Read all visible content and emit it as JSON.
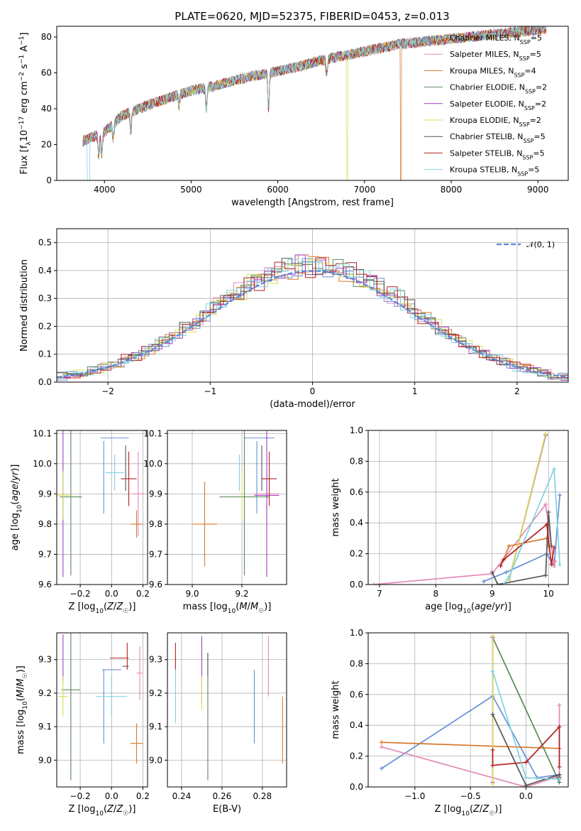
{
  "figure": {
    "title": "PLATE=0620, MJD=52375, FIBERID=0453, z=0.013",
    "series": [
      {
        "name": "Chabrier MILES, N_{SSP}=5",
        "legend_main": "Chabrier MILES, N",
        "legend_sub": "SSP",
        "legend_tail": "=5",
        "color": "#6b8fd6"
      },
      {
        "name": "Salpeter MILES, N_{SSP}=5",
        "legend_main": "Salpeter MILES, N",
        "legend_sub": "SSP",
        "legend_tail": "=5",
        "color": "#e589b6"
      },
      {
        "name": "Kroupa MILES, N_{SSP}=4",
        "legend_main": "Kroupa MILES, N",
        "legend_sub": "SSP",
        "legend_tail": "=4",
        "color": "#d9782a"
      },
      {
        "name": "Chabrier ELODIE, N_{SSP}=2",
        "legend_main": "Chabrier ELODIE, N",
        "legend_sub": "SSP",
        "legend_tail": "=2",
        "color": "#5b8a5b"
      },
      {
        "name": "Salpeter ELODIE, N_{SSP}=2",
        "legend_main": "Salpeter ELODIE, N",
        "legend_sub": "SSP",
        "legend_tail": "=2",
        "color": "#a23ec4"
      },
      {
        "name": "Kroupa ELODIE, N_{SSP}=2",
        "legend_main": "Kroupa ELODIE, N",
        "legend_sub": "SSP",
        "legend_tail": "=2",
        "color": "#d9e05a"
      },
      {
        "name": "Chabrier STELIB, N_{SSP}=5",
        "legend_main": "Chabrier STELIB, N",
        "legend_sub": "SSP",
        "legend_tail": "=5",
        "color": "#555555"
      },
      {
        "name": "Salpeter STELIB, N_{SSP}=5",
        "legend_main": "Salpeter STELIB, N",
        "legend_sub": "SSP",
        "legend_tail": "=5",
        "color": "#b22222"
      },
      {
        "name": "Kroupa STELIB, N_{SSP}=5",
        "legend_main": "Kroupa STELIB, N",
        "legend_sub": "SSP",
        "legend_tail": "=5",
        "color": "#7fd3df"
      }
    ]
  },
  "chart_data": [
    {
      "id": "spectrum",
      "type": "line",
      "xlabel": "wavelength [Angstrom, rest frame]",
      "ylabel": "Flux [f_λ 10^-17 erg cm^-2 s^-1 A^-1]",
      "xlim": [
        3450,
        9350
      ],
      "ylim": [
        0,
        86
      ],
      "xticks": [
        4000,
        5000,
        6000,
        7000,
        8000,
        9000
      ],
      "yticks": [
        0,
        20,
        40,
        60,
        80
      ],
      "grid": false,
      "legend": "top-right",
      "continuum": [
        [
          3750,
          22
        ],
        [
          3900,
          25
        ],
        [
          4000,
          27
        ],
        [
          4200,
          36
        ],
        [
          4500,
          42
        ],
        [
          4800,
          47
        ],
        [
          5000,
          50
        ],
        [
          5300,
          53
        ],
        [
          5600,
          57
        ],
        [
          5900,
          60
        ],
        [
          6200,
          63
        ],
        [
          6500,
          67
        ],
        [
          6800,
          70
        ],
        [
          7100,
          73
        ],
        [
          7400,
          76
        ],
        [
          7800,
          78
        ],
        [
          8200,
          80
        ],
        [
          8600,
          82
        ],
        [
          9000,
          84
        ],
        [
          9100,
          85
        ]
      ],
      "absorption_lines": [
        [
          3934,
          12
        ],
        [
          3969,
          12
        ],
        [
          4101,
          8
        ],
        [
          4304,
          10
        ],
        [
          4861,
          6
        ],
        [
          5175,
          12
        ],
        [
          5893,
          20
        ],
        [
          6563,
          8
        ]
      ]
    },
    {
      "id": "residuals",
      "type": "histogram",
      "xlabel": "(data-model)/error",
      "ylabel": "Normed distribution",
      "xlim": [
        -2.5,
        2.5
      ],
      "ylim": [
        0,
        0.55
      ],
      "xticks": [
        -2,
        -1,
        0,
        1,
        2
      ],
      "yticks": [
        0.0,
        0.1,
        0.2,
        0.3,
        0.4,
        0.5
      ],
      "grid": true,
      "legend": "top-right",
      "reference_label": "N(0, 1)",
      "reference_color": "#5b87d6",
      "bin_width": 0.1
    },
    {
      "id": "age-vs-Z",
      "type": "scatter-errorbars",
      "xlabel": "Z [log10(Z/Z☉)]",
      "ylabel": "age [log10(age/yr)]",
      "xlim": [
        -0.35,
        0.23
      ],
      "ylim": [
        9.6,
        10.11
      ],
      "xticks": [
        -0.2,
        0.0,
        0.2
      ],
      "xtick_labels": [
        "−0.2",
        "0.0",
        "0.2"
      ],
      "yticks": [
        9.6,
        9.7,
        9.8,
        9.9,
        10.0,
        10.1
      ],
      "grid": true,
      "points": [
        {
          "x": 0.02,
          "y": 10.085,
          "xerr": 0.09,
          "yerr": 0.0,
          "color": "#6b8fd6"
        },
        {
          "x": -0.05,
          "y": 9.955,
          "xerr": 0.0,
          "yerr": 0.12,
          "color": "#6b8fd6"
        },
        {
          "x": 0.17,
          "y": 9.9,
          "xerr": 0.04,
          "yerr": 0.14,
          "color": "#e589b6"
        },
        {
          "x": 0.16,
          "y": 9.8,
          "xerr": 0.04,
          "yerr": 0.045,
          "color": "#d9782a"
        },
        {
          "x": -0.26,
          "y": 9.89,
          "xerr": 0.07,
          "yerr": 0.26,
          "color": "#5b8a5b"
        },
        {
          "x": -0.31,
          "y": 9.895,
          "xerr": 0.0,
          "yerr": 0.27,
          "color": "#a23ec4"
        },
        {
          "x": -0.31,
          "y": 9.895,
          "xerr": 0.05,
          "yerr": 0.08,
          "color": "#d9e05a"
        },
        {
          "x": 0.09,
          "y": 9.985,
          "xerr": 0.0,
          "yerr": 0.075,
          "color": "#555555"
        },
        {
          "x": 0.11,
          "y": 9.95,
          "xerr": 0.05,
          "yerr": 0.09,
          "color": "#b22222"
        },
        {
          "x": 0.02,
          "y": 9.97,
          "xerr": 0.06,
          "yerr": 0.06,
          "color": "#7fd3df"
        }
      ]
    },
    {
      "id": "age-vs-mass",
      "type": "scatter-errorbars",
      "xlabel": "mass [log10(M/M☉)]",
      "ylabel": "",
      "xlim": [
        8.9,
        9.38
      ],
      "ylim": [
        9.6,
        10.11
      ],
      "xticks": [
        9.0,
        9.2
      ],
      "xtick_labels": [
        "9.0",
        "9.2"
      ],
      "yticks": [
        9.6,
        9.7,
        9.8,
        9.9,
        10.0,
        10.1
      ],
      "grid": true,
      "points": [
        {
          "x": 9.27,
          "y": 10.085,
          "xerr": 0.06,
          "yerr": 0.0,
          "color": "#6b8fd6"
        },
        {
          "x": 9.26,
          "y": 9.955,
          "xerr": 0.0,
          "yerr": 0.12,
          "color": "#6b8fd6"
        },
        {
          "x": 9.3,
          "y": 9.9,
          "xerr": 0.05,
          "yerr": 0.07,
          "color": "#e589b6"
        },
        {
          "x": 9.05,
          "y": 9.8,
          "xerr": 0.05,
          "yerr": 0.14,
          "color": "#d9782a"
        },
        {
          "x": 9.21,
          "y": 9.89,
          "xerr": 0.1,
          "yerr": 0.26,
          "color": "#5b8a5b"
        },
        {
          "x": 9.3,
          "y": 9.895,
          "xerr": 0.05,
          "yerr": 0.27,
          "color": "#a23ec4"
        },
        {
          "x": 9.2,
          "y": 9.895,
          "xerr": 0.0,
          "yerr": 0.08,
          "color": "#d9e05a"
        },
        {
          "x": 9.28,
          "y": 9.985,
          "xerr": 0.0,
          "yerr": 0.075,
          "color": "#555555"
        },
        {
          "x": 9.31,
          "y": 9.95,
          "xerr": 0.03,
          "yerr": 0.09,
          "color": "#b22222"
        },
        {
          "x": 9.19,
          "y": 9.97,
          "xerr": 0.0,
          "yerr": 0.06,
          "color": "#7fd3df"
        }
      ]
    },
    {
      "id": "weight-vs-age",
      "type": "line",
      "xlabel": "age [log10(age/yr)]",
      "ylabel": "mass weight",
      "xlim": [
        6.8,
        10.35
      ],
      "ylim": [
        0,
        1.0
      ],
      "xticks": [
        7,
        8,
        9,
        10
      ],
      "xtick_labels": [
        "7",
        "8",
        "9",
        "10"
      ],
      "yticks": [
        0.0,
        0.2,
        0.4,
        0.6,
        0.8,
        1.0
      ],
      "grid": true,
      "series": [
        {
          "points": [
            [
              8.85,
              0.02
            ],
            [
              9.25,
              0.08
            ],
            [
              9.97,
              0.2
            ],
            [
              10.1,
              0.12
            ],
            [
              10.2,
              0.58
            ]
          ],
          "color": "#6b8fd6"
        },
        {
          "points": [
            [
              6.9,
              0.0
            ],
            [
              9.0,
              0.07
            ],
            [
              9.95,
              0.52
            ],
            [
              10.1,
              0.12
            ],
            [
              10.12,
              0.15
            ]
          ],
          "color": "#e589b6"
        },
        {
          "points": [
            [
              9.2,
              0.16
            ],
            [
              9.3,
              0.25
            ],
            [
              9.97,
              0.3
            ],
            [
              10.0,
              0.25
            ]
          ],
          "color": "#d9782a"
        },
        {
          "points": [
            [
              9.3,
              0.03
            ],
            [
              9.95,
              0.97
            ]
          ],
          "color": "#5b8a5b"
        },
        {
          "points": [
            [
              9.3,
              0.03
            ],
            [
              9.95,
              0.97
            ]
          ],
          "color": "#a23ec4"
        },
        {
          "points": [
            [
              9.3,
              0.03
            ],
            [
              9.95,
              0.98
            ]
          ],
          "color": "#d9e05a"
        },
        {
          "points": [
            [
              9.0,
              0.08
            ],
            [
              9.1,
              0.0
            ],
            [
              9.95,
              0.06
            ],
            [
              10.0,
              0.47
            ],
            [
              10.05,
              0.25
            ]
          ],
          "color": "#555555"
        },
        {
          "points": [
            [
              9.15,
              0.12
            ],
            [
              9.2,
              0.16
            ],
            [
              9.97,
              0.39
            ],
            [
              10.05,
              0.13
            ],
            [
              10.1,
              0.24
            ]
          ],
          "color": "#b22222"
        },
        {
          "points": [
            [
              9.2,
              0.0
            ],
            [
              9.3,
              0.05
            ],
            [
              10.1,
              0.75
            ],
            [
              10.2,
              0.13
            ]
          ],
          "color": "#7fd3df"
        }
      ]
    },
    {
      "id": "mass-vs-Z",
      "type": "scatter-errorbars",
      "xlabel": "Z [log10(Z/Z☉)]",
      "ylabel": "mass [log10(M/M☉)]",
      "xlim": [
        -0.35,
        0.23
      ],
      "ylim": [
        8.92,
        9.38
      ],
      "xticks": [
        -0.2,
        0.0,
        0.2
      ],
      "xtick_labels": [
        "−0.2",
        "0.0",
        "0.2"
      ],
      "yticks": [
        9.0,
        9.1,
        9.2,
        9.3
      ],
      "ytick_labels": [
        "9.0",
        "9.1",
        "9.2",
        "9.3"
      ],
      "grid": true,
      "points": [
        {
          "x": 0.0,
          "y": 9.27,
          "xerr": 0.06,
          "yerr": 0.0,
          "color": "#6b8fd6"
        },
        {
          "x": -0.05,
          "y": 9.16,
          "xerr": 0.0,
          "yerr": 0.11,
          "color": "#6b8fd6"
        },
        {
          "x": 0.18,
          "y": 9.26,
          "xerr": 0.02,
          "yerr": 0.08,
          "color": "#e589b6"
        },
        {
          "x": 0.16,
          "y": 9.05,
          "xerr": 0.04,
          "yerr": 0.06,
          "color": "#d9782a"
        },
        {
          "x": -0.26,
          "y": 9.21,
          "xerr": 0.06,
          "yerr": 0.27,
          "color": "#5b8a5b"
        },
        {
          "x": -0.31,
          "y": 9.305,
          "xerr": 0.0,
          "yerr": 0.07,
          "color": "#a23ec4"
        },
        {
          "x": -0.31,
          "y": 9.19,
          "xerr": 0.03,
          "yerr": 0.06,
          "color": "#d9e05a"
        },
        {
          "x": 0.09,
          "y": 9.28,
          "xerr": 0.02,
          "yerr": 0.0,
          "color": "#555555"
        },
        {
          "x": 0.05,
          "y": 9.305,
          "xerr": 0.06,
          "yerr": 0.0,
          "color": "#b22222"
        },
        {
          "x": 0.1,
          "y": 9.31,
          "xerr": 0.0,
          "yerr": 0.04,
          "color": "#b22222"
        },
        {
          "x": 0.0,
          "y": 9.19,
          "xerr": 0.1,
          "yerr": 0.06,
          "color": "#7fd3df"
        }
      ]
    },
    {
      "id": "mass-vs-EBV",
      "type": "scatter-errorbars",
      "xlabel": "E(B-V)",
      "ylabel": "",
      "xlim": [
        0.233,
        0.292
      ],
      "ylim": [
        8.92,
        9.38
      ],
      "xticks": [
        0.24,
        0.26,
        0.28
      ],
      "xtick_labels": [
        "0.24",
        "0.26",
        "0.28"
      ],
      "yticks": [
        9.0,
        9.1,
        9.2,
        9.3
      ],
      "ytick_labels": [
        "9.0",
        "9.1",
        "9.2",
        "9.3"
      ],
      "grid": true,
      "points": [
        {
          "x": 0.276,
          "y": 9.16,
          "xerr": 0.0,
          "yerr": 0.11,
          "color": "#6b8fd6"
        },
        {
          "x": 0.283,
          "y": 9.28,
          "xerr": 0.0,
          "yerr": 0.09,
          "color": "#e589b6"
        },
        {
          "x": 0.29,
          "y": 9.09,
          "xerr": 0.0,
          "yerr": 0.1,
          "color": "#d9782a"
        },
        {
          "x": 0.253,
          "y": 9.13,
          "xerr": 0.0,
          "yerr": 0.19,
          "color": "#5b8a5b"
        },
        {
          "x": 0.25,
          "y": 9.27,
          "xerr": 0.0,
          "yerr": 0.1,
          "color": "#a23ec4"
        },
        {
          "x": 0.25,
          "y": 9.2,
          "xerr": 0.0,
          "yerr": 0.05,
          "color": "#d9e05a"
        },
        {
          "x": 0.253,
          "y": 9.285,
          "xerr": 0.0,
          "yerr": 0.035,
          "color": "#555555"
        },
        {
          "x": 0.237,
          "y": 9.31,
          "xerr": 0.0,
          "yerr": 0.04,
          "color": "#b22222"
        },
        {
          "x": 0.237,
          "y": 9.19,
          "xerr": 0.0,
          "yerr": 0.08,
          "color": "#7fd3df"
        }
      ]
    },
    {
      "id": "weight-vs-Z",
      "type": "line",
      "xlabel": "Z [log10(Z/Z☉)]",
      "ylabel": "mass weight",
      "xlim": [
        -1.42,
        0.38
      ],
      "ylim": [
        0,
        1.0
      ],
      "xticks": [
        -1.0,
        -0.5,
        0.0
      ],
      "xtick_labels": [
        "−1.0",
        "−0.5",
        "0.0"
      ],
      "yticks": [
        0.0,
        0.2,
        0.4,
        0.6,
        0.8,
        1.0
      ],
      "grid": true,
      "series": [
        {
          "points": [
            [
              -1.3,
              0.12
            ],
            [
              -0.3,
              0.59
            ],
            [
              0.1,
              0.06
            ],
            [
              0.3,
              0.08
            ],
            [
              0.3,
              0.03
            ]
          ],
          "color": "#6b8fd6"
        },
        {
          "points": [
            [
              -1.3,
              0.26
            ],
            [
              0.0,
              0.0
            ],
            [
              0.3,
              0.07
            ],
            [
              0.3,
              0.53
            ]
          ],
          "color": "#e589b6"
        },
        {
          "points": [
            [
              -1.3,
              0.29
            ],
            [
              0.3,
              0.25
            ]
          ],
          "color": "#d9782a"
        },
        {
          "points": [
            [
              -0.3,
              0.97
            ],
            [
              0.3,
              0.03
            ]
          ],
          "color": "#5b8a5b"
        },
        {
          "points": [
            [
              -0.3,
              0.97
            ],
            [
              -0.3,
              0.03
            ]
          ],
          "color": "#a23ec4"
        },
        {
          "points": [
            [
              -0.3,
              0.98
            ],
            [
              -0.3,
              0.02
            ]
          ],
          "color": "#d9e05a"
        },
        {
          "points": [
            [
              -0.3,
              0.47
            ],
            [
              0.0,
              0.01
            ],
            [
              0.3,
              0.08
            ],
            [
              0.3,
              0.06
            ]
          ],
          "color": "#555555"
        },
        {
          "points": [
            [
              -0.3,
              0.24
            ],
            [
              -0.3,
              0.14
            ],
            [
              0.0,
              0.16
            ],
            [
              0.3,
              0.39
            ],
            [
              0.3,
              0.13
            ]
          ],
          "color": "#b22222"
        },
        {
          "points": [
            [
              -0.3,
              0.75
            ],
            [
              0.0,
              0.06
            ],
            [
              0.3,
              0.05
            ]
          ],
          "color": "#7fd3df"
        }
      ]
    }
  ]
}
